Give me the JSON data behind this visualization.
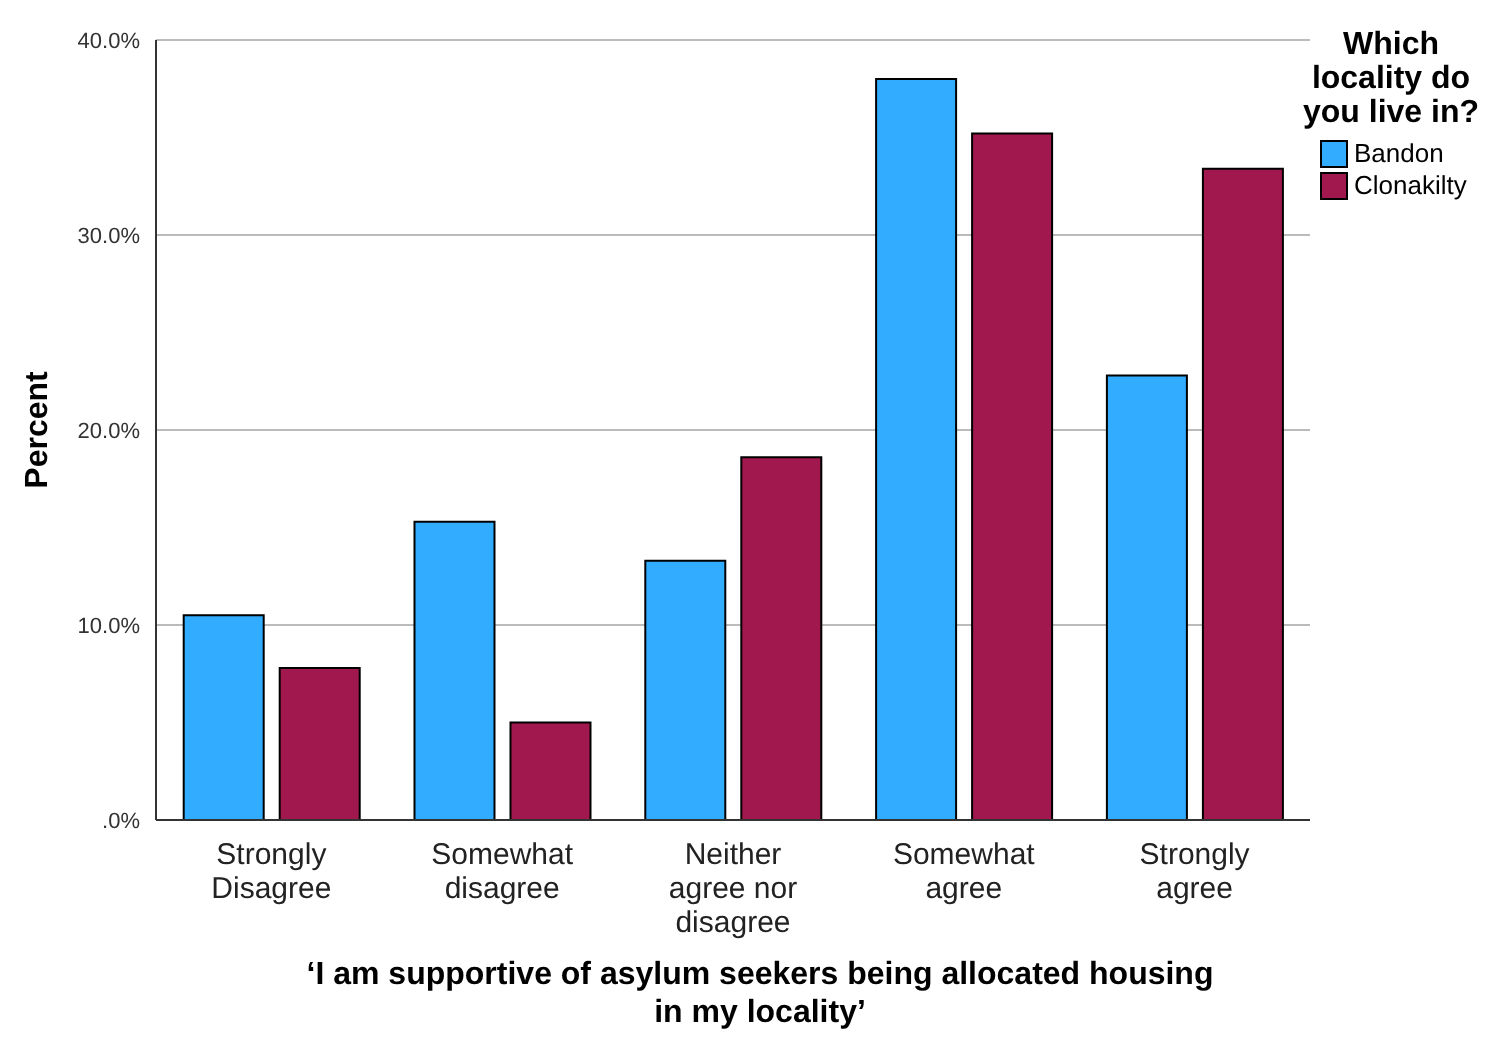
{
  "chart_data": {
    "type": "bar",
    "xlabel": "‘I am supportive of asylum seekers being allocated housing in my locality’",
    "ylabel": "Percent",
    "legend_title": "Which locality do you live in?",
    "categories": [
      "Strongly Disagree",
      "Somewhat disagree",
      "Neither agree nor disagree",
      "Somewhat agree",
      "Strongly agree"
    ],
    "series": [
      {
        "name": "Bandon",
        "color": "#31acfe",
        "values": [
          10.5,
          15.3,
          13.3,
          38.0,
          22.8
        ]
      },
      {
        "name": "Clonakilty",
        "color": "#a0184d",
        "values": [
          7.8,
          5.0,
          18.6,
          35.2,
          33.4
        ]
      }
    ],
    "ylim": [
      0,
      40
    ],
    "yticks": [
      {
        "value": 0,
        "label": ".0%"
      },
      {
        "value": 10,
        "label": "10.0%"
      },
      {
        "value": 20,
        "label": "20.0%"
      },
      {
        "value": 30,
        "label": "30.0%"
      },
      {
        "value": 40,
        "label": "40.0%"
      }
    ],
    "grid": "y",
    "legend": "top right"
  }
}
